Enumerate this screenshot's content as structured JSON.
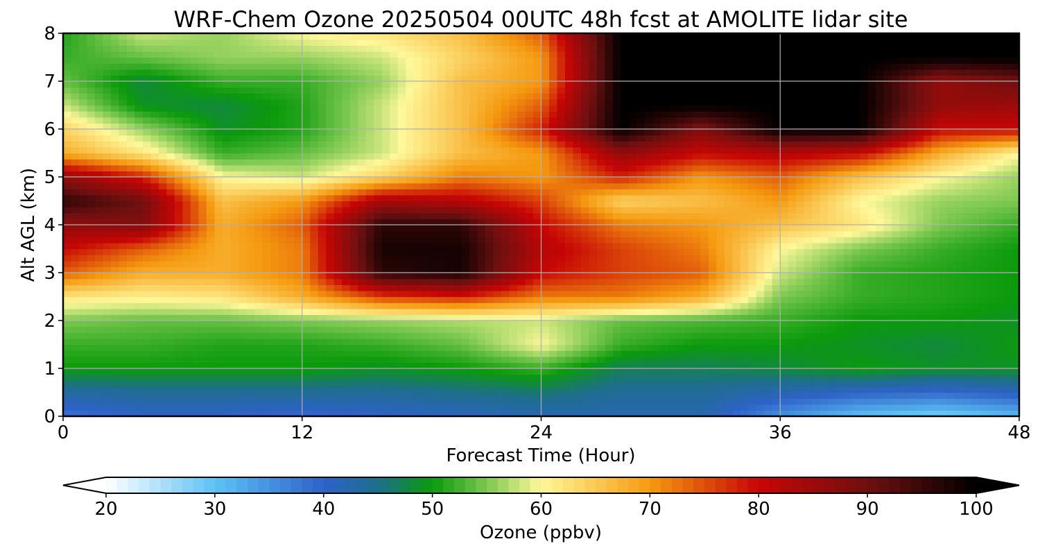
{
  "chart_data": {
    "type": "heatmap",
    "title": "WRF-Chem Ozone  20250504 00UTC 48h fcst at AMOLITE lidar site",
    "xlabel": "Forecast Time (Hour)",
    "ylabel": "Alt AGL (km)",
    "xlim": [
      0,
      48
    ],
    "ylim": [
      0,
      8
    ],
    "xticks": [
      0,
      12,
      24,
      36,
      48
    ],
    "yticks": [
      0,
      1,
      2,
      3,
      4,
      5,
      6,
      7,
      8
    ],
    "grid": true,
    "colorbar": {
      "label": "Ozone  (ppbv)",
      "range": [
        20,
        100
      ],
      "ticks": [
        20,
        30,
        40,
        50,
        60,
        70,
        80,
        90,
        100
      ],
      "extend": "both",
      "stops": [
        {
          "v": 20,
          "c": "#ffffff"
        },
        {
          "v": 30,
          "c": "#5ec2f5"
        },
        {
          "v": 40,
          "c": "#2e62c8"
        },
        {
          "v": 45,
          "c": "#1e6e8c"
        },
        {
          "v": 50,
          "c": "#0b9a0b"
        },
        {
          "v": 55,
          "c": "#7cc850"
        },
        {
          "v": 60,
          "c": "#fff89a"
        },
        {
          "v": 70,
          "c": "#f59a10"
        },
        {
          "v": 80,
          "c": "#c70505"
        },
        {
          "v": 90,
          "c": "#701010"
        },
        {
          "v": 100,
          "c": "#000000"
        }
      ]
    },
    "x": [
      0,
      4,
      8,
      12,
      16,
      20,
      24,
      28,
      32,
      36,
      40,
      44,
      48
    ],
    "y": [
      0,
      0.5,
      1,
      1.5,
      2,
      2.5,
      3,
      3.5,
      4,
      4.5,
      5,
      5.5,
      6,
      6.5,
      7,
      7.5,
      8
    ],
    "z": [
      [
        38,
        40,
        40,
        39,
        40,
        41,
        42,
        42,
        42,
        35,
        30,
        28,
        31
      ],
      [
        43,
        44,
        44,
        44,
        44,
        45,
        46,
        44,
        44,
        42,
        40,
        39,
        41
      ],
      [
        50,
        50,
        50,
        50,
        49,
        50,
        52,
        47,
        47,
        48,
        50,
        49,
        49
      ],
      [
        52,
        52,
        51,
        51,
        52,
        54,
        60,
        52,
        50,
        50,
        49,
        48,
        50
      ],
      [
        55,
        54,
        54,
        55,
        56,
        57,
        58,
        54,
        53,
        52,
        50,
        50,
        49
      ],
      [
        62,
        61,
        62,
        68,
        76,
        78,
        72,
        72,
        68,
        55,
        52,
        51,
        50
      ],
      [
        74,
        68,
        68,
        72,
        96,
        98,
        80,
        76,
        74,
        58,
        52,
        51,
        50
      ],
      [
        80,
        74,
        68,
        72,
        98,
        98,
        82,
        76,
        72,
        60,
        55,
        52,
        50
      ],
      [
        86,
        88,
        68,
        74,
        96,
        96,
        80,
        72,
        70,
        66,
        62,
        55,
        52
      ],
      [
        96,
        90,
        66,
        70,
        84,
        82,
        76,
        64,
        66,
        70,
        60,
        56,
        55
      ],
      [
        86,
        78,
        60,
        58,
        64,
        72,
        70,
        78,
        70,
        74,
        66,
        60,
        56
      ],
      [
        68,
        62,
        52,
        54,
        58,
        66,
        70,
        86,
        80,
        82,
        80,
        68,
        60
      ],
      [
        64,
        56,
        49,
        51,
        58,
        66,
        78,
        100,
        88,
        100,
        100,
        80,
        80
      ],
      [
        58,
        49,
        48,
        51,
        58,
        66,
        74,
        100,
        100,
        100,
        100,
        86,
        85
      ],
      [
        54,
        48,
        52,
        52,
        56,
        66,
        70,
        100,
        100,
        100,
        100,
        86,
        90
      ],
      [
        52,
        54,
        56,
        56,
        58,
        64,
        70,
        100,
        100,
        100,
        100,
        100,
        100
      ],
      [
        51,
        58,
        56,
        60,
        62,
        66,
        74,
        100,
        100,
        100,
        100,
        100,
        100
      ]
    ]
  }
}
